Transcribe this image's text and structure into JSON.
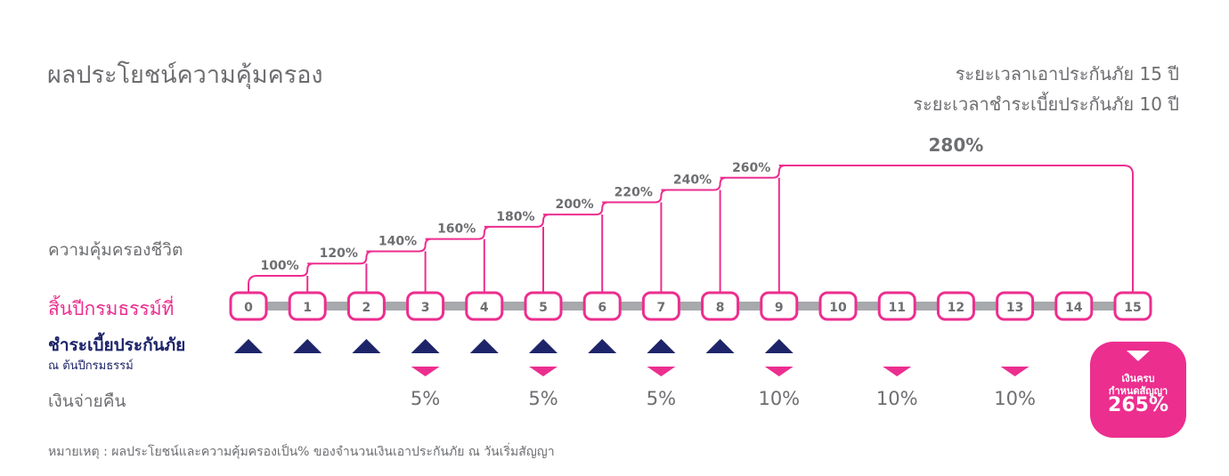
{
  "title": "ผลประโยชน์ความคุ้มครอง",
  "coverage_term": "ระยะเวลาเอาประกันภัย 15 ปี",
  "premium_term": "ระยะเวลาชำระเบี้ยประกันภัย 10 ปี",
  "row_labels": {
    "coverage": "ความคุ้มครองชีวิต",
    "policy_year": "สิ้นปีกรมธรรม์ที่",
    "premium": "ชำระเบี้ยประกันภัย",
    "premium_sub": "ณ ต้นปีกรมธรรม์",
    "cashback": "เงินจ่ายคืน"
  },
  "maturity": {
    "line1": "เงินครบ",
    "line2": "กำหนดสัญญา",
    "value": "265%"
  },
  "footnote": "หมายเหตุ : ผลประโยชน์และความคุ้มครองเป็น% ของจำนวนเงินเอาประกันภัย ณ วันเริ่มสัญญา",
  "colors": {
    "pink": "#ec2e8f",
    "navy": "#1d2469",
    "gray": "#6d6e71",
    "track": "#a7a9ac"
  },
  "chart_data": {
    "type": "timeline",
    "policy_years": [
      "0",
      "1",
      "2",
      "3",
      "4",
      "5",
      "6",
      "7",
      "8",
      "9",
      "10",
      "11",
      "12",
      "13",
      "14",
      "15"
    ],
    "life_coverage": [
      {
        "from": 0,
        "to": 1,
        "label": "100%",
        "value": 100
      },
      {
        "from": 1,
        "to": 2,
        "label": "120%",
        "value": 120
      },
      {
        "from": 2,
        "to": 3,
        "label": "140%",
        "value": 140
      },
      {
        "from": 3,
        "to": 4,
        "label": "160%",
        "value": 160
      },
      {
        "from": 4,
        "to": 5,
        "label": "180%",
        "value": 180
      },
      {
        "from": 5,
        "to": 6,
        "label": "200%",
        "value": 200
      },
      {
        "from": 6,
        "to": 7,
        "label": "220%",
        "value": 220
      },
      {
        "from": 7,
        "to": 8,
        "label": "240%",
        "value": 240
      },
      {
        "from": 8,
        "to": 9,
        "label": "260%",
        "value": 260
      },
      {
        "from": 9,
        "to": 15,
        "label": "280%",
        "value": 280
      }
    ],
    "premium_years": [
      0,
      1,
      2,
      3,
      4,
      5,
      6,
      7,
      8,
      9
    ],
    "cashback": [
      {
        "year": 3,
        "label": "5%"
      },
      {
        "year": 5,
        "label": "5%"
      },
      {
        "year": 7,
        "label": "5%"
      },
      {
        "year": 9,
        "label": "10%"
      },
      {
        "year": 11,
        "label": "10%"
      },
      {
        "year": 13,
        "label": "10%"
      }
    ],
    "maturity_year": 15
  }
}
